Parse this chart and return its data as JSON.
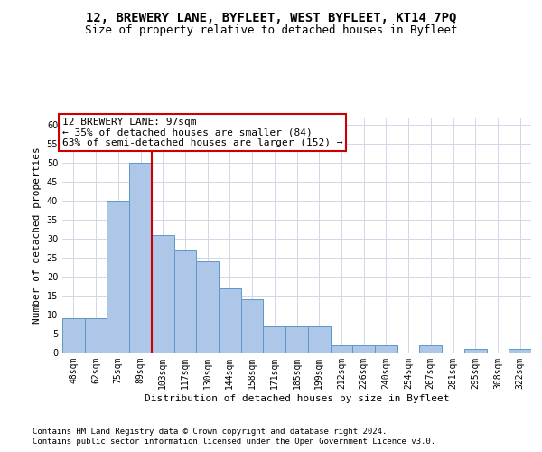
{
  "title1": "12, BREWERY LANE, BYFLEET, WEST BYFLEET, KT14 7PQ",
  "title2": "Size of property relative to detached houses in Byfleet",
  "xlabel": "Distribution of detached houses by size in Byfleet",
  "ylabel": "Number of detached properties",
  "categories": [
    "48sqm",
    "62sqm",
    "75sqm",
    "89sqm",
    "103sqm",
    "117sqm",
    "130sqm",
    "144sqm",
    "158sqm",
    "171sqm",
    "185sqm",
    "199sqm",
    "212sqm",
    "226sqm",
    "240sqm",
    "254sqm",
    "267sqm",
    "281sqm",
    "295sqm",
    "308sqm",
    "322sqm"
  ],
  "values": [
    9,
    9,
    40,
    50,
    31,
    27,
    24,
    17,
    14,
    7,
    7,
    7,
    2,
    2,
    2,
    0,
    2,
    0,
    1,
    0,
    1
  ],
  "bar_color": "#aec6e8",
  "bar_edge_color": "#5a9ac8",
  "red_line_x": 3.5,
  "annotation_title": "12 BREWERY LANE: 97sqm",
  "annotation_line1": "← 35% of detached houses are smaller (84)",
  "annotation_line2": "63% of semi-detached houses are larger (152) →",
  "annotation_box_color": "#ffffff",
  "annotation_box_edge": "#cc0000",
  "red_line_color": "#cc0000",
  "ylim": [
    0,
    62
  ],
  "yticks": [
    0,
    5,
    10,
    15,
    20,
    25,
    30,
    35,
    40,
    45,
    50,
    55,
    60
  ],
  "footer1": "Contains HM Land Registry data © Crown copyright and database right 2024.",
  "footer2": "Contains public sector information licensed under the Open Government Licence v3.0.",
  "background_color": "#ffffff",
  "grid_color": "#d0d8e8",
  "title1_fontsize": 10,
  "title2_fontsize": 9,
  "ylabel_fontsize": 8,
  "xlabel_fontsize": 8,
  "tick_fontsize": 7,
  "annotation_fontsize": 8,
  "footer_fontsize": 6.5
}
